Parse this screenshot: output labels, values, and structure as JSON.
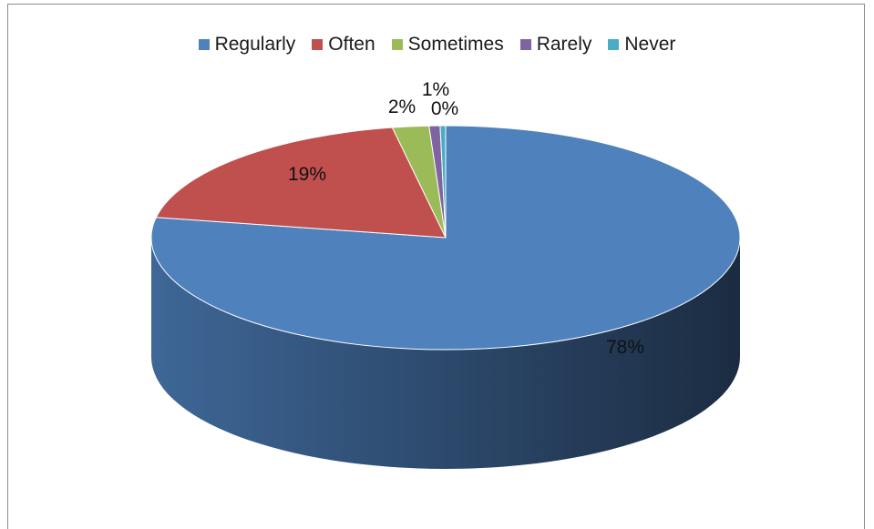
{
  "chart_data": {
    "type": "pie",
    "title": "",
    "legend_position": "top",
    "three_d": true,
    "categories": [
      "Regularly",
      "Often",
      "Sometimes",
      "Rarely",
      "Never"
    ],
    "values": [
      78,
      19,
      2,
      1,
      0
    ],
    "data_labels": [
      "78%",
      "19%",
      "2%",
      "1%",
      "0%"
    ],
    "colors": [
      "#4f81bd",
      "#c0504d",
      "#9bbb59",
      "#8064a2",
      "#4bacc6"
    ]
  }
}
